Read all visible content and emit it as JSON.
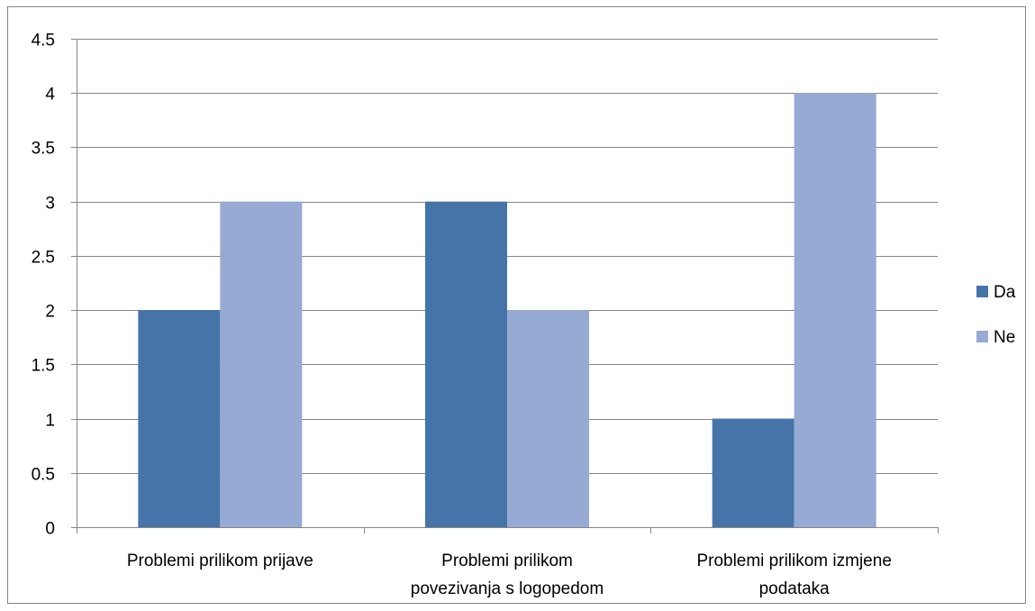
{
  "chart_data": {
    "type": "bar",
    "categories": [
      [
        "Problemi prilikom prijave"
      ],
      [
        "Problemi prilikom",
        "povezivanja s logopedom"
      ],
      [
        "Problemi prilikom izmjene",
        "podataka"
      ]
    ],
    "series": [
      {
        "name": "Da",
        "values": [
          2,
          3,
          1
        ],
        "color": "#4674A9"
      },
      {
        "name": "Ne",
        "values": [
          3,
          2,
          4
        ],
        "color": "#96AAD3"
      }
    ],
    "y_ticks": [
      "0",
      "0.5",
      "1",
      "1.5",
      "2",
      "2.5",
      "3",
      "3.5",
      "4",
      "4.5"
    ],
    "ylim": [
      0,
      4.5
    ],
    "grid": true,
    "legend_position": "right",
    "title": "",
    "xlabel": "",
    "ylabel": ""
  }
}
